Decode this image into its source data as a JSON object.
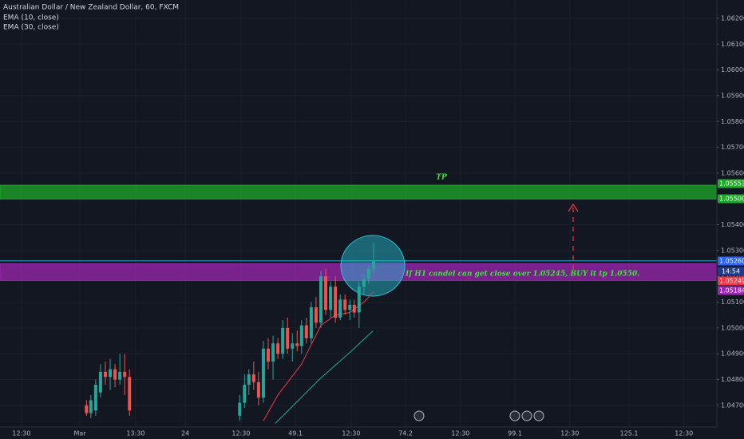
{
  "chart_data": {
    "type": "candlestick",
    "title": "Australian Dollar / New Zealand Dollar, 60, FXCM",
    "indicators": [
      "EMA (10, close)",
      "EMA (30, close)"
    ],
    "x": [
      1.5,
      2.5,
      3.6,
      4.7,
      5.8,
      6.9,
      8.0,
      9.1,
      10.2,
      11.3,
      36.4,
      37.5,
      38.5,
      39.6,
      40.7,
      41.8,
      42.9,
      44.0,
      45.1,
      46.2,
      47.3,
      48.4,
      49.5,
      50.5,
      51.6,
      52.7,
      53.8,
      54.9,
      56.0,
      57.1,
      58.2,
      59.3,
      60.4,
      61.5,
      62.5,
      63.6,
      64.7,
      65.8,
      66.9
    ],
    "open": [
      1.047,
      1.0467,
      1.0468,
      1.0475,
      1.0483,
      1.0481,
      1.0484,
      1.048,
      1.0483,
      1.0481,
      1.0466,
      1.0471,
      1.0478,
      1.0482,
      1.0479,
      1.0473,
      1.0492,
      1.0487,
      1.0494,
      1.049,
      1.05,
      1.0492,
      1.0494,
      1.0493,
      1.0501,
      1.0496,
      1.0508,
      1.0502,
      1.052,
      1.0507,
      1.0516,
      1.0504,
      1.0511,
      1.0507,
      1.0509,
      1.0506,
      1.0516,
      1.0519,
      1.0523
    ],
    "high": [
      1.0472,
      1.0474,
      1.048,
      1.0486,
      1.0487,
      1.0488,
      1.0486,
      1.049,
      1.049,
      1.0484,
      1.0474,
      1.0482,
      1.0484,
      1.0487,
      1.0483,
      1.0495,
      1.0496,
      1.0497,
      1.0496,
      1.0503,
      1.0504,
      1.0498,
      1.0499,
      1.0503,
      1.0504,
      1.051,
      1.0512,
      1.0522,
      1.0523,
      1.0518,
      1.052,
      1.0513,
      1.0513,
      1.0511,
      1.0511,
      1.0518,
      1.0521,
      1.0524,
      1.0533
    ],
    "low": [
      1.0466,
      1.0465,
      1.0466,
      1.0473,
      1.0478,
      1.0476,
      1.0477,
      1.0478,
      1.0474,
      1.0466,
      1.0464,
      1.0469,
      1.0474,
      1.0476,
      1.047,
      1.0471,
      1.0484,
      1.048,
      1.0488,
      1.0488,
      1.049,
      1.0487,
      1.0491,
      1.049,
      1.0494,
      1.0494,
      1.05,
      1.05,
      1.0505,
      1.0504,
      1.0502,
      1.0503,
      1.0505,
      1.0503,
      1.0504,
      1.05,
      1.0513,
      1.0517,
      1.0521
    ],
    "close": [
      1.0467,
      1.0472,
      1.0478,
      1.0483,
      1.0481,
      1.0484,
      1.048,
      1.0483,
      1.0481,
      1.0468,
      1.0471,
      1.0478,
      1.0482,
      1.0479,
      1.0473,
      1.0492,
      1.0487,
      1.0494,
      1.049,
      1.05,
      1.0492,
      1.0494,
      1.0493,
      1.0501,
      1.0496,
      1.0508,
      1.0502,
      1.052,
      1.0507,
      1.0516,
      1.0504,
      1.0511,
      1.0507,
      1.0509,
      1.0506,
      1.0516,
      1.0519,
      1.0523,
      1.0526
    ],
    "up_color": "#26a69a",
    "down_color": "#ef5350",
    "lines": [
      {
        "color": "#f23645",
        "x": [
          41.8,
          45.1,
          50.5,
          54.9,
          58.2,
          61.5,
          64.7,
          66.9
        ],
        "values": [
          1.0464,
          1.0474,
          1.0486,
          1.0501,
          1.0505,
          1.0506,
          1.051,
          1.0514
        ]
      },
      {
        "color": "#22ab94",
        "x": [
          44.5,
          54.5,
          61.8,
          66.7
        ],
        "values": [
          1.0463,
          1.048,
          1.0491,
          1.04988
        ]
      }
    ],
    "xlim": [
      -18.2,
      145.1
    ],
    "xticks": [
      {
        "value": -13.3,
        "label": "12:30"
      },
      {
        "value": 0,
        "label": "Mar"
      },
      {
        "value": 12.7,
        "label": "13:30"
      },
      24,
      {
        "value": 36.7,
        "label": "12:30"
      },
      49.1,
      {
        "value": 61.8,
        "label": "12:30"
      },
      74.2,
      {
        "value": 86.7,
        "label": "12:30"
      },
      99.1,
      {
        "value": 111.6,
        "label": "12:30"
      },
      125.1,
      {
        "value": 137.6,
        "label": "12:30"
      }
    ],
    "ylim": [
      1.04616,
      1.06271
    ],
    "yticks": [
      {
        "value": 1.062,
        "label": "1.06200"
      },
      {
        "value": 1.061,
        "label": "1.06100"
      },
      {
        "value": 1.06,
        "label": "1.06000"
      },
      {
        "value": 1.059,
        "label": "1.05900"
      },
      {
        "value": 1.058,
        "label": "1.05800"
      },
      {
        "value": 1.057,
        "label": "1.05700"
      },
      {
        "value": 1.056,
        "label": "1.05600"
      },
      {
        "value": 1.055,
        "label": "1.05500"
      },
      {
        "value": 1.054,
        "label": "1.05400"
      },
      {
        "value": 1.053,
        "label": "1.05300"
      },
      {
        "value": 1.052,
        "label": "1.05200"
      },
      {
        "value": 1.051,
        "label": "1.05100"
      },
      {
        "value": 1.05,
        "label": "1.05000"
      },
      {
        "value": 1.049,
        "label": "1.04900"
      },
      {
        "value": 1.048,
        "label": "1.04800"
      },
      {
        "value": 1.047,
        "label": "1.04700"
      }
    ],
    "grid": true,
    "price_tags": [
      {
        "value": 1.05553,
        "label": "1.05553",
        "color": "#1faa2a"
      },
      {
        "value": 1.055,
        "label": "1.05500",
        "color": "#1faa2a"
      },
      {
        "value": 1.0526,
        "label": "1.05260",
        "color": "#2962ff"
      },
      {
        "value": 1.05249,
        "label": "1.05249",
        "color": "#f23645"
      },
      {
        "value": 1.05184,
        "label": "1.05184",
        "color": "#9c27b0"
      }
    ],
    "countdown": "14:54",
    "annotations": [
      "TP",
      "If H1 candel can get close over 1.05245, BUY it tp 1.0550."
    ]
  }
}
